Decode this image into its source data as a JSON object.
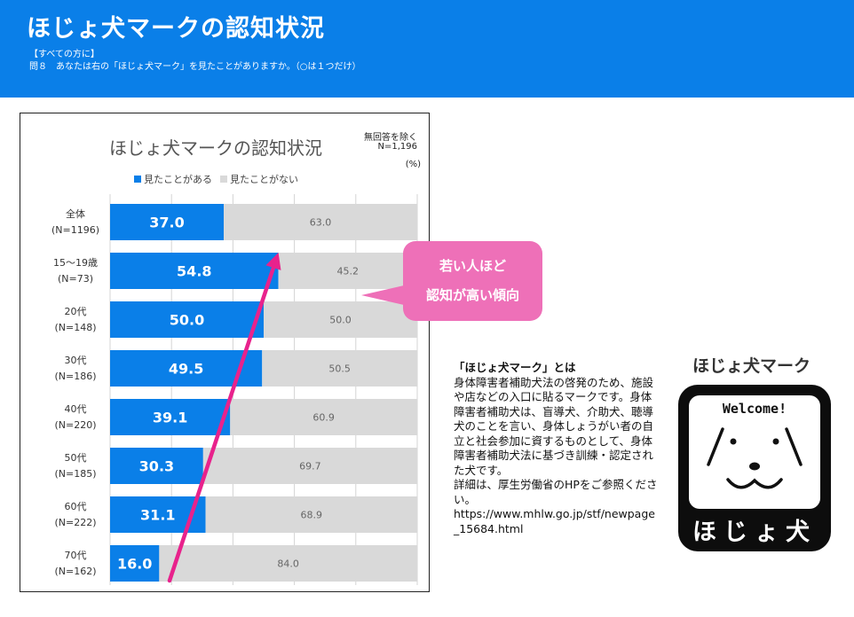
{
  "header": {
    "title": "ほじょ犬マークの認知状況",
    "audience": "【すべての方に】",
    "question": "問８　あなたは右の「ほじょ犬マーク」を見たことがありますか。（○は１つだけ）"
  },
  "chart_data": {
    "type": "bar",
    "stacked": true,
    "orientation": "horizontal",
    "title": "ほじょ犬マークの認知状況",
    "note": [
      "無回答を除く",
      "N=1,196"
    ],
    "unit": "(%)",
    "legend_position": "top",
    "categories": [
      [
        "全体",
        "(N=1196)"
      ],
      [
        "15～19歳",
        "(N=73)"
      ],
      [
        "20代",
        "(N=148)"
      ],
      [
        "30代",
        "(N=186)"
      ],
      [
        "40代",
        "(N=220)"
      ],
      [
        "50代",
        "(N=185)"
      ],
      [
        "60代",
        "(N=222)"
      ],
      [
        "70代",
        "(N=162)"
      ]
    ],
    "series": [
      {
        "name": "見たことがある",
        "color": "#0a7fe8",
        "values": [
          37.0,
          54.8,
          50.0,
          49.5,
          39.1,
          30.3,
          31.1,
          16.0
        ]
      },
      {
        "name": "見たことがない",
        "color": "#d9d9d9",
        "values": [
          63.0,
          45.2,
          50.0,
          50.5,
          60.9,
          69.7,
          68.9,
          84.0
        ]
      }
    ],
    "xlim": [
      0,
      100
    ],
    "grid": true
  },
  "callout": {
    "lines": [
      "若い人ほど",
      "認知が高い傾向"
    ],
    "color": "#ee70b8"
  },
  "info": {
    "heading": "「ほじょ犬マーク」とは",
    "body": "身体障害者補助犬法の啓発のため、施設や店などの入口に貼るマークです。身体障害者補助犬は、盲導犬、介助犬、聴導犬のことを言い、身体しょうがい者の自立と社会参加に資するものとして、身体障害者補助犬法に基づき訓練・認定された犬です。",
    "detail": "詳細は、厚生労働省のHPをご参照ください。",
    "url": "https://www.mhlw.go.jp/stf/newpage_15684.html"
  },
  "mark": {
    "title": "ほじょ犬マーク",
    "welcome": "Welcome!",
    "name": "ほじょ犬",
    "icon": "hojo-dog-face-icon"
  }
}
